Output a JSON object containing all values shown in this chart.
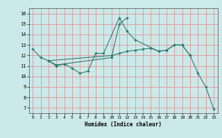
{
  "xlabel": "Humidex (Indice chaleur)",
  "background_color": "#cce9e9",
  "line_color": "#2d7a6e",
  "grid_color": "#e88080",
  "xlim": [
    -0.5,
    23.5
  ],
  "ylim": [
    6.5,
    16.5
  ],
  "xticks": [
    0,
    1,
    2,
    3,
    4,
    5,
    6,
    7,
    8,
    9,
    10,
    11,
    12,
    13,
    14,
    15,
    16,
    17,
    18,
    19,
    20,
    21,
    22,
    23
  ],
  "yticks": [
    7,
    8,
    9,
    10,
    11,
    12,
    13,
    14,
    15,
    16
  ],
  "series": [
    {
      "x": [
        0,
        1,
        2,
        3,
        4,
        5,
        6,
        7,
        8,
        9,
        11,
        12,
        13,
        16,
        17,
        18,
        19,
        20,
        21,
        22,
        23
      ],
      "y": [
        12.6,
        11.8,
        11.5,
        11.0,
        11.2,
        10.8,
        10.3,
        10.5,
        12.2,
        12.2,
        15.6,
        14.3,
        13.5,
        12.4,
        12.5,
        13.0,
        13.0,
        12.0,
        10.3,
        9.0,
        6.9
      ]
    },
    {
      "x": [
        2,
        3,
        4,
        10,
        11,
        12
      ],
      "y": [
        11.5,
        11.1,
        11.2,
        11.8,
        15.0,
        15.6
      ]
    },
    {
      "x": [
        2,
        10,
        11,
        12,
        13,
        14,
        15,
        16,
        17,
        18,
        19,
        20
      ],
      "y": [
        11.5,
        12.0,
        12.2,
        12.4,
        12.5,
        12.6,
        12.7,
        12.4,
        12.5,
        13.0,
        13.0,
        12.0
      ]
    }
  ]
}
